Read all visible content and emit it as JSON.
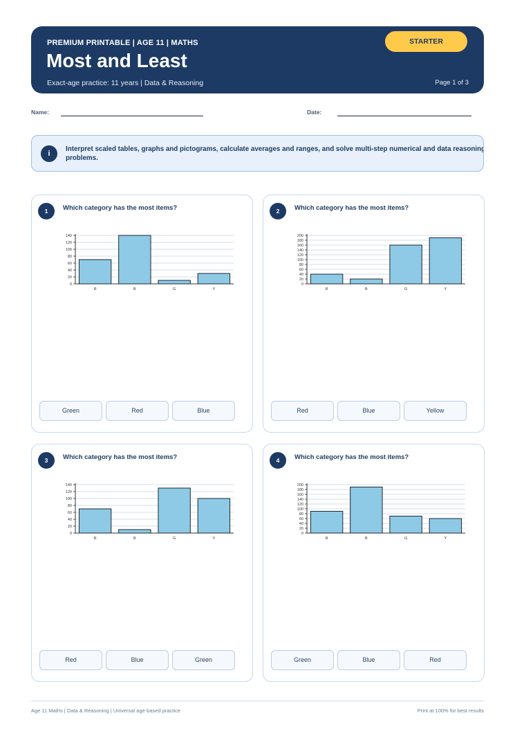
{
  "header": {
    "kicker": "PREMIUM PRINTABLE | AGE 11 | MATHS",
    "title": "Most and Least",
    "subtitle": "Exact-age practice: 11 years | Data & Reasoning",
    "page": "Page 1 of 3",
    "badge": "STARTER"
  },
  "fields": {
    "name_label": "Name:",
    "date_label": "Date:"
  },
  "info": {
    "icon": "i",
    "text": "Interpret scaled tables, graphs and pictograms, calculate averages and ranges, and solve multi-step numerical and data reasoning problems."
  },
  "questions": [
    {
      "number": "1",
      "prompt": "Which category has the most items?",
      "options": [
        "Green",
        "Red",
        "Blue"
      ]
    },
    {
      "number": "2",
      "prompt": "Which category has the most items?",
      "options": [
        "Red",
        "Blue",
        "Yellow"
      ]
    },
    {
      "number": "3",
      "prompt": "Which category has the most items?",
      "options": [
        "Red",
        "Blue",
        "Green"
      ]
    },
    {
      "number": "4",
      "prompt": "Which category has the most items?",
      "options": [
        "Green",
        "Blue",
        "Red"
      ]
    }
  ],
  "chart_data": [
    {
      "type": "bar",
      "categories": [
        "R",
        "B",
        "G",
        "Y"
      ],
      "values": [
        70,
        140,
        10,
        30
      ],
      "ylim": [
        0,
        140
      ],
      "yticks": [
        0,
        20,
        40,
        60,
        80,
        100,
        120,
        140
      ],
      "grid": true,
      "bar_color": "#8ecae6"
    },
    {
      "type": "bar",
      "categories": [
        "R",
        "B",
        "G",
        "Y"
      ],
      "values": [
        40,
        20,
        160,
        190
      ],
      "ylim": [
        0,
        200
      ],
      "yticks": [
        0,
        20,
        40,
        60,
        80,
        100,
        120,
        140,
        160,
        180,
        200
      ],
      "grid": true,
      "bar_color": "#8ecae6"
    },
    {
      "type": "bar",
      "categories": [
        "R",
        "B",
        "G",
        "Y"
      ],
      "values": [
        70,
        10,
        130,
        100
      ],
      "ylim": [
        0,
        140
      ],
      "yticks": [
        0,
        20,
        40,
        60,
        80,
        100,
        120,
        140
      ],
      "grid": true,
      "bar_color": "#8ecae6"
    },
    {
      "type": "bar",
      "categories": [
        "R",
        "B",
        "G",
        "Y"
      ],
      "values": [
        90,
        190,
        70,
        60
      ],
      "ylim": [
        0,
        200
      ],
      "yticks": [
        0,
        20,
        40,
        60,
        80,
        100,
        120,
        140,
        160,
        180,
        200
      ],
      "grid": true,
      "bar_color": "#8ecae6"
    }
  ],
  "footer": {
    "left": "Age 11 Maths | Data & Reasoning | Universal age-based practice",
    "right": "Print at 100% for best results"
  },
  "colors": {
    "primary": "#1c3a64",
    "accent": "#ffc94a",
    "bar": "#8ecae6"
  }
}
